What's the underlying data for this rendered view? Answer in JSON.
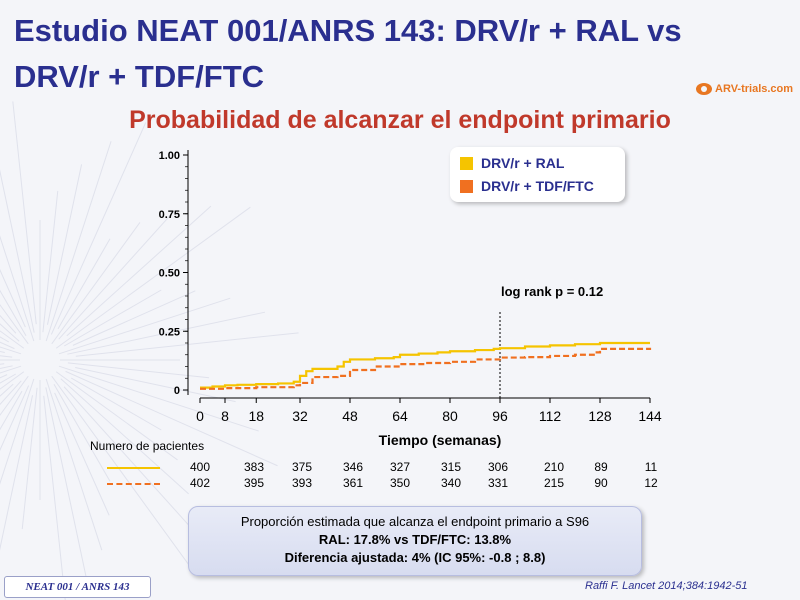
{
  "slide": {
    "title": "Estudio NEAT 001/ANRS 143: DRV/r + RAL vs DRV/r + TDF/FTC",
    "logo_text": "ARV-trials.com",
    "subtitle": "Probabilidad de alcanzar el endpoint primario",
    "pvalue_text": "log rank p = 0.12",
    "patients_title": "Numero de pacientes",
    "summary_line1": "Proporción estimada que alcanza el endpoint primario a S96",
    "summary_line2": "RAL: 17.8% vs TDF/FTC: 13.8%",
    "summary_line3": "Diferencia ajustada: 4% (IC 95%: -0.8 ; 8.8)",
    "footer_tag": "NEAT 001 / ANRS 143",
    "citation": "Raffi F. Lancet 2014;384:1942-51"
  },
  "chart_data": {
    "type": "line",
    "xlabel": "Tiempo (semanas)",
    "ylabel": "",
    "xlim": [
      0,
      144
    ],
    "ylim": [
      0,
      1
    ],
    "x_ticks": [
      0,
      8,
      18,
      32,
      48,
      64,
      80,
      96,
      112,
      128,
      144
    ],
    "y_ticks": [
      0,
      0.25,
      0.5,
      0.75,
      1.0
    ],
    "y_tick_labels": [
      "0",
      "0.25",
      "0.50",
      "0.75",
      "1.00"
    ],
    "reference_line_x": 96,
    "legend_position": "top-right",
    "series": [
      {
        "name": "DRV/r + RAL",
        "color": "#f5c400",
        "style": "solid",
        "x": [
          0,
          4,
          8,
          12,
          18,
          25,
          30,
          32,
          34,
          36,
          44,
          46,
          48,
          56,
          62,
          64,
          70,
          76,
          80,
          88,
          94,
          96,
          104,
          112,
          120,
          128,
          144
        ],
        "y": [
          0.01,
          0.015,
          0.02,
          0.022,
          0.025,
          0.028,
          0.035,
          0.06,
          0.08,
          0.09,
          0.1,
          0.12,
          0.13,
          0.135,
          0.14,
          0.15,
          0.155,
          0.16,
          0.165,
          0.17,
          0.175,
          0.178,
          0.185,
          0.19,
          0.195,
          0.2,
          0.2
        ]
      },
      {
        "name": "DRV/r + TDF/FTC",
        "color": "#f07020",
        "style": "dashed",
        "x": [
          0,
          8,
          18,
          30,
          32,
          36,
          44,
          48,
          56,
          64,
          72,
          80,
          88,
          96,
          104,
          112,
          120,
          126,
          128,
          144
        ],
        "y": [
          0.005,
          0.008,
          0.012,
          0.02,
          0.03,
          0.055,
          0.06,
          0.085,
          0.1,
          0.11,
          0.115,
          0.12,
          0.13,
          0.138,
          0.14,
          0.145,
          0.15,
          0.16,
          0.175,
          0.18
        ]
      }
    ]
  },
  "patients": {
    "weeks": [
      0,
      8,
      18,
      32,
      48,
      64,
      80,
      96,
      112,
      128,
      144
    ],
    "ral": [
      400,
      383,
      375,
      346,
      327,
      315,
      306,
      210,
      89,
      11
    ],
    "tdf": [
      402,
      395,
      393,
      361,
      350,
      340,
      331,
      215,
      90,
      12
    ]
  }
}
